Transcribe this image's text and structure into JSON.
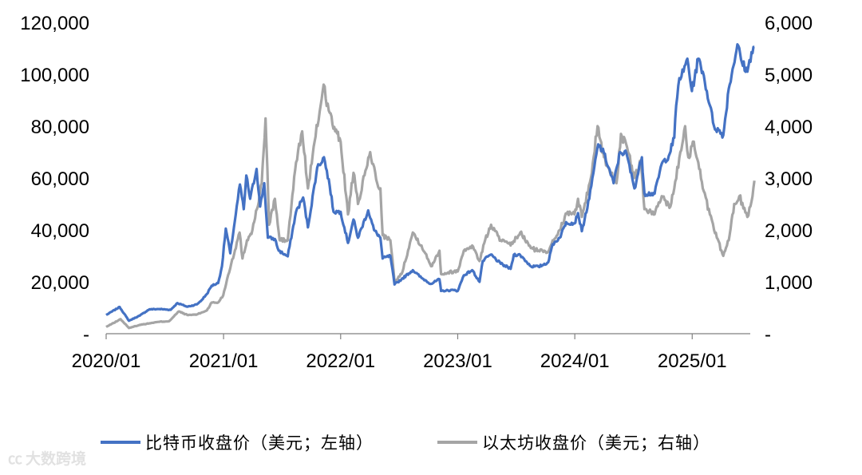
{
  "chart_data": {
    "type": "line",
    "x_range": [
      "2020/01",
      "2025/07"
    ],
    "x_ticks": [
      "2020/01",
      "2021/01",
      "2022/01",
      "2023/01",
      "2024/01",
      "2025/01"
    ],
    "y_left": {
      "range": [
        0,
        120000
      ],
      "ticks": [
        "-",
        "20,000",
        "40,000",
        "60,000",
        "80,000",
        "100,000",
        "120,000"
      ]
    },
    "y_right": {
      "range": [
        0,
        6000
      ],
      "ticks": [
        "-",
        "1,000",
        "2,000",
        "3,000",
        "4,000",
        "5,000",
        "6,000"
      ]
    },
    "grid": false,
    "legend_position": "bottom",
    "series": [
      {
        "name": "比特币收盘价（美元；左轴）",
        "axis": "left",
        "color": "#4472C4",
        "points": [
          [
            "2020-01-01",
            7200
          ],
          [
            "2020-02-12",
            10300
          ],
          [
            "2020-03-12",
            5000
          ],
          [
            "2020-04-15",
            7000
          ],
          [
            "2020-05-15",
            9400
          ],
          [
            "2020-06-15",
            9500
          ],
          [
            "2020-07-20",
            9200
          ],
          [
            "2020-08-10",
            11800
          ],
          [
            "2020-09-10",
            10400
          ],
          [
            "2020-10-10",
            11300
          ],
          [
            "2020-10-25",
            13000
          ],
          [
            "2020-11-10",
            15300
          ],
          [
            "2020-11-25",
            18500
          ],
          [
            "2020-12-15",
            19500
          ],
          [
            "2020-12-27",
            26000
          ],
          [
            "2021-01-08",
            40500
          ],
          [
            "2021-01-22",
            31000
          ],
          [
            "2021-02-08",
            46000
          ],
          [
            "2021-02-21",
            57500
          ],
          [
            "2021-03-05",
            48000
          ],
          [
            "2021-03-13",
            61000
          ],
          [
            "2021-03-25",
            52000
          ],
          [
            "2021-04-14",
            63500
          ],
          [
            "2021-04-25",
            49000
          ],
          [
            "2021-05-08",
            58000
          ],
          [
            "2021-05-19",
            37000
          ],
          [
            "2021-06-10",
            36500
          ],
          [
            "2021-06-22",
            32000
          ],
          [
            "2021-07-20",
            29800
          ],
          [
            "2021-08-15",
            47000
          ],
          [
            "2021-09-06",
            52500
          ],
          [
            "2021-09-21",
            41000
          ],
          [
            "2021-10-20",
            64000
          ],
          [
            "2021-11-10",
            68000
          ],
          [
            "2021-11-28",
            57000
          ],
          [
            "2021-12-10",
            47000
          ],
          [
            "2022-01-01",
            47000
          ],
          [
            "2022-01-24",
            35000
          ],
          [
            "2022-02-10",
            44000
          ],
          [
            "2022-02-24",
            37000
          ],
          [
            "2022-03-28",
            47500
          ],
          [
            "2022-04-15",
            40000
          ],
          [
            "2022-05-05",
            37000
          ],
          [
            "2022-05-12",
            29000
          ],
          [
            "2022-06-05",
            30000
          ],
          [
            "2022-06-18",
            19000
          ],
          [
            "2022-07-10",
            21000
          ],
          [
            "2022-08-14",
            24500
          ],
          [
            "2022-09-10",
            21500
          ],
          [
            "2022-10-10",
            19200
          ],
          [
            "2022-11-05",
            21000
          ],
          [
            "2022-11-10",
            16500
          ],
          [
            "2022-12-20",
            16800
          ],
          [
            "2023-01-01",
            16500
          ],
          [
            "2023-01-20",
            22500
          ],
          [
            "2023-02-15",
            24500
          ],
          [
            "2023-03-10",
            20000
          ],
          [
            "2023-03-20",
            28000
          ],
          [
            "2023-04-14",
            30500
          ],
          [
            "2023-05-15",
            27000
          ],
          [
            "2023-06-15",
            25000
          ],
          [
            "2023-06-25",
            30500
          ],
          [
            "2023-07-15",
            30300
          ],
          [
            "2023-08-17",
            26000
          ],
          [
            "2023-09-10",
            25800
          ],
          [
            "2023-10-10",
            27500
          ],
          [
            "2023-10-24",
            34500
          ],
          [
            "2023-11-15",
            37000
          ],
          [
            "2023-12-05",
            43000
          ],
          [
            "2023-12-31",
            42500
          ],
          [
            "2024-01-11",
            46500
          ],
          [
            "2024-01-23",
            39500
          ],
          [
            "2024-02-15",
            52000
          ],
          [
            "2024-02-28",
            62000
          ],
          [
            "2024-03-14",
            73000
          ],
          [
            "2024-04-01",
            69500
          ],
          [
            "2024-05-01",
            58000
          ],
          [
            "2024-05-21",
            70000
          ],
          [
            "2024-06-10",
            69500
          ],
          [
            "2024-07-05",
            56000
          ],
          [
            "2024-07-28",
            68000
          ],
          [
            "2024-08-05",
            54000
          ],
          [
            "2024-09-06",
            54000
          ],
          [
            "2024-09-28",
            65500
          ],
          [
            "2024-10-20",
            68500
          ],
          [
            "2024-11-06",
            75500
          ],
          [
            "2024-11-12",
            88000
          ],
          [
            "2024-11-22",
            98500
          ],
          [
            "2024-12-05",
            101000
          ],
          [
            "2024-12-17",
            106000
          ],
          [
            "2024-12-31",
            93500
          ],
          [
            "2025-01-20",
            106000
          ],
          [
            "2025-02-03",
            101000
          ],
          [
            "2025-02-25",
            88000
          ],
          [
            "2025-03-10",
            80000
          ],
          [
            "2025-04-08",
            76500
          ],
          [
            "2025-04-25",
            94500
          ],
          [
            "2025-05-22",
            111500
          ],
          [
            "2025-06-05",
            104500
          ],
          [
            "2025-06-22",
            101000
          ],
          [
            "2025-07-05",
            108500
          ],
          [
            "2025-07-14",
            110500
          ]
        ]
      },
      {
        "name": "以太坊收盘价（美元；右轴）",
        "axis": "right",
        "color": "#A5A5A5",
        "points": [
          [
            "2020-01-01",
            130
          ],
          [
            "2020-02-15",
            280
          ],
          [
            "2020-03-12",
            110
          ],
          [
            "2020-04-15",
            170
          ],
          [
            "2020-05-15",
            200
          ],
          [
            "2020-06-15",
            230
          ],
          [
            "2020-07-15",
            240
          ],
          [
            "2020-08-15",
            430
          ],
          [
            "2020-09-10",
            360
          ],
          [
            "2020-10-10",
            370
          ],
          [
            "2020-11-10",
            450
          ],
          [
            "2020-11-25",
            600
          ],
          [
            "2020-12-15",
            600
          ],
          [
            "2020-12-31",
            740
          ],
          [
            "2021-01-12",
            1050
          ],
          [
            "2021-01-25",
            1350
          ],
          [
            "2021-02-20",
            1950
          ],
          [
            "2021-03-01",
            1450
          ],
          [
            "2021-03-15",
            1800
          ],
          [
            "2021-04-01",
            2000
          ],
          [
            "2021-04-15",
            2400
          ],
          [
            "2021-04-30",
            2900
          ],
          [
            "2021-05-12",
            4150
          ],
          [
            "2021-05-23",
            2100
          ],
          [
            "2021-06-10",
            2600
          ],
          [
            "2021-06-25",
            1800
          ],
          [
            "2021-07-20",
            1800
          ],
          [
            "2021-08-15",
            3300
          ],
          [
            "2021-09-03",
            3900
          ],
          [
            "2021-09-21",
            2800
          ],
          [
            "2021-10-15",
            3800
          ],
          [
            "2021-11-09",
            4800
          ],
          [
            "2021-11-25",
            4300
          ],
          [
            "2021-12-15",
            3900
          ],
          [
            "2022-01-01",
            3700
          ],
          [
            "2022-01-24",
            2300
          ],
          [
            "2022-02-10",
            3100
          ],
          [
            "2022-02-24",
            2500
          ],
          [
            "2022-04-03",
            3500
          ],
          [
            "2022-04-25",
            2900
          ],
          [
            "2022-05-05",
            2800
          ],
          [
            "2022-05-12",
            1900
          ],
          [
            "2022-06-05",
            1800
          ],
          [
            "2022-06-18",
            1000
          ],
          [
            "2022-07-10",
            1150
          ],
          [
            "2022-08-14",
            1950
          ],
          [
            "2022-09-10",
            1700
          ],
          [
            "2022-10-10",
            1300
          ],
          [
            "2022-11-05",
            1600
          ],
          [
            "2022-11-10",
            1150
          ],
          [
            "2022-12-20",
            1200
          ],
          [
            "2023-01-01",
            1200
          ],
          [
            "2023-01-20",
            1600
          ],
          [
            "2023-02-15",
            1700
          ],
          [
            "2023-03-10",
            1400
          ],
          [
            "2023-03-25",
            1750
          ],
          [
            "2023-04-15",
            2100
          ],
          [
            "2023-05-15",
            1800
          ],
          [
            "2023-06-15",
            1700
          ],
          [
            "2023-07-15",
            1950
          ],
          [
            "2023-08-17",
            1650
          ],
          [
            "2023-09-10",
            1600
          ],
          [
            "2023-10-10",
            1580
          ],
          [
            "2023-10-24",
            1800
          ],
          [
            "2023-11-15",
            2000
          ],
          [
            "2023-12-10",
            2350
          ],
          [
            "2023-12-31",
            2300
          ],
          [
            "2024-01-11",
            2600
          ],
          [
            "2024-01-23",
            2250
          ],
          [
            "2024-02-20",
            3000
          ],
          [
            "2024-03-12",
            4000
          ],
          [
            "2024-04-01",
            3400
          ],
          [
            "2024-04-20",
            3100
          ],
          [
            "2024-05-10",
            2900
          ],
          [
            "2024-05-24",
            3850
          ],
          [
            "2024-06-15",
            3500
          ],
          [
            "2024-07-05",
            3000
          ],
          [
            "2024-07-25",
            3300
          ],
          [
            "2024-08-05",
            2400
          ],
          [
            "2024-09-06",
            2300
          ],
          [
            "2024-09-28",
            2650
          ],
          [
            "2024-10-25",
            2450
          ],
          [
            "2024-11-06",
            2800
          ],
          [
            "2024-11-25",
            3500
          ],
          [
            "2024-12-10",
            4000
          ],
          [
            "2024-12-20",
            3400
          ],
          [
            "2025-01-06",
            3700
          ],
          [
            "2025-01-20",
            3300
          ],
          [
            "2025-02-03",
            2800
          ],
          [
            "2025-02-25",
            2300
          ],
          [
            "2025-03-10",
            2000
          ],
          [
            "2025-04-08",
            1500
          ],
          [
            "2025-04-25",
            1800
          ],
          [
            "2025-05-12",
            2500
          ],
          [
            "2025-05-28",
            2650
          ],
          [
            "2025-06-22",
            2250
          ],
          [
            "2025-07-05",
            2550
          ],
          [
            "2025-07-14",
            2950
          ]
        ]
      }
    ]
  },
  "watermark": {
    "logo": "㏄",
    "text": "大数跨境"
  }
}
